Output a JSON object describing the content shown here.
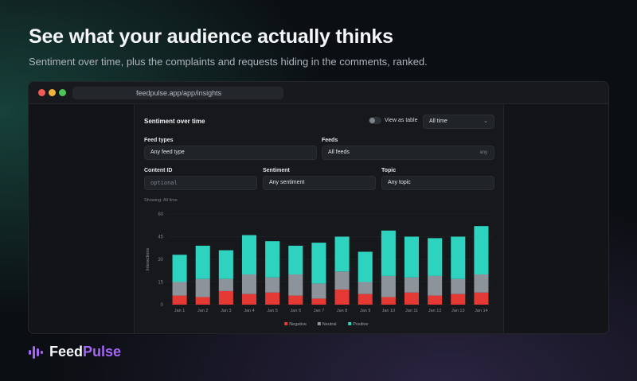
{
  "headline": "See what your audience actually thinks",
  "subline": "Sentiment over time, plus the complaints and requests hiding in the comments, ranked.",
  "browser": {
    "url": "feedpulse.app/app/insights"
  },
  "panel": {
    "title": "Sentiment over time",
    "view_as_table": "View as table",
    "range_value": "All time",
    "feed_types": {
      "label": "Feed types",
      "value": "Any feed type"
    },
    "feeds": {
      "label": "Feeds",
      "value": "All feeds",
      "suffix": "any"
    },
    "content_id": {
      "label": "Content ID",
      "placeholder": "optional"
    },
    "sentiment": {
      "label": "Sentiment",
      "value": "Any sentiment"
    },
    "topic": {
      "label": "Topic",
      "value": "Any topic"
    },
    "showing": "Showing: All time"
  },
  "chart_data": {
    "type": "bar",
    "stacked": true,
    "ylabel": "Interactions",
    "ylim": [
      0,
      60
    ],
    "yticks": [
      0,
      15,
      30,
      45,
      60
    ],
    "categories": [
      "Jan 1",
      "Jan 2",
      "Jan 3",
      "Jan 4",
      "Jan 5",
      "Jan 6",
      "Jan 7",
      "Jan 8",
      "Jan 9",
      "Jan 10",
      "Jan 11",
      "Jan 12",
      "Jan 13",
      "Jan 14"
    ],
    "series": [
      {
        "name": "Negative",
        "color": "#e53935",
        "values": [
          6,
          5,
          9,
          7,
          8,
          6,
          4,
          10,
          7,
          5,
          8,
          6,
          7,
          8
        ]
      },
      {
        "name": "Neutral",
        "color": "#8d939b",
        "values": [
          9,
          12,
          8,
          13,
          10,
          14,
          10,
          12,
          8,
          14,
          10,
          13,
          10,
          12
        ]
      },
      {
        "name": "Positive",
        "color": "#2ed3c0",
        "values": [
          18,
          22,
          19,
          26,
          24,
          19,
          27,
          23,
          20,
          30,
          27,
          25,
          28,
          32
        ]
      }
    ],
    "legend": "bottom"
  },
  "brand": {
    "name_part1": "Feed",
    "name_part2": "Pulse",
    "accent": "#a566f5"
  }
}
